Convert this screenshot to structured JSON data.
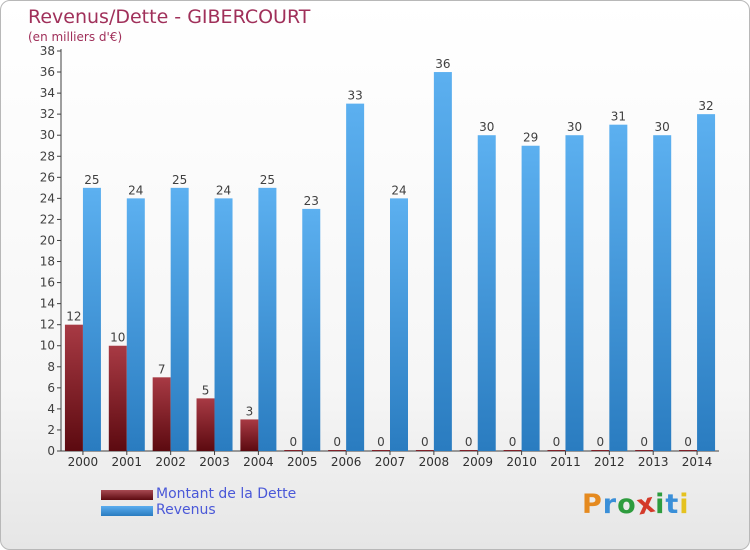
{
  "header": {
    "title": "Revenus/Dette - GIBERCOURT",
    "subtitle": "(en milliers d'€)"
  },
  "chart_data": {
    "type": "bar",
    "title": "Revenus/Dette - GIBERCOURT",
    "subtitle": "(en milliers d'€)",
    "xlabel": "",
    "ylabel": "",
    "ylim": [
      0,
      38
    ],
    "yticks": [
      0,
      2,
      4,
      6,
      8,
      10,
      12,
      14,
      16,
      18,
      20,
      22,
      24,
      26,
      28,
      30,
      32,
      34,
      36,
      38
    ],
    "grid": false,
    "categories": [
      "2000",
      "2001",
      "2002",
      "2003",
      "2004",
      "2005",
      "2006",
      "2007",
      "2008",
      "2009",
      "2010",
      "2011",
      "2012",
      "2013",
      "2014"
    ],
    "series": [
      {
        "name": "Montant de la Dette",
        "color": "#7a1e26",
        "values": [
          12,
          10,
          7,
          5,
          3,
          0,
          0,
          0,
          0,
          0,
          0,
          0,
          0,
          0,
          0
        ]
      },
      {
        "name": "Revenus",
        "color": "#3d95e0",
        "values": [
          25,
          24,
          25,
          24,
          25,
          23,
          33,
          24,
          36,
          30,
          29,
          30,
          31,
          30,
          32
        ]
      }
    ]
  },
  "legend": {
    "items": [
      {
        "label": "Montant de la Dette"
      },
      {
        "label": "Revenus"
      }
    ]
  },
  "logo": {
    "text": "Proxiti",
    "letters": [
      {
        "ch": "P",
        "color": "#e58a1f"
      },
      {
        "ch": "r",
        "color": "#3a8fd8"
      },
      {
        "ch": "o",
        "color": "#2e9c3e"
      },
      {
        "ch": "x",
        "color": "#d43a2a"
      },
      {
        "ch": "i",
        "color": "#2e9c3e"
      },
      {
        "ch": "t",
        "color": "#3a8fd8"
      },
      {
        "ch": "i",
        "color": "#e5c21f"
      }
    ]
  },
  "colors": {
    "title": "#a0305a",
    "axis": "#404040",
    "legend_text": "#4a58d8"
  }
}
